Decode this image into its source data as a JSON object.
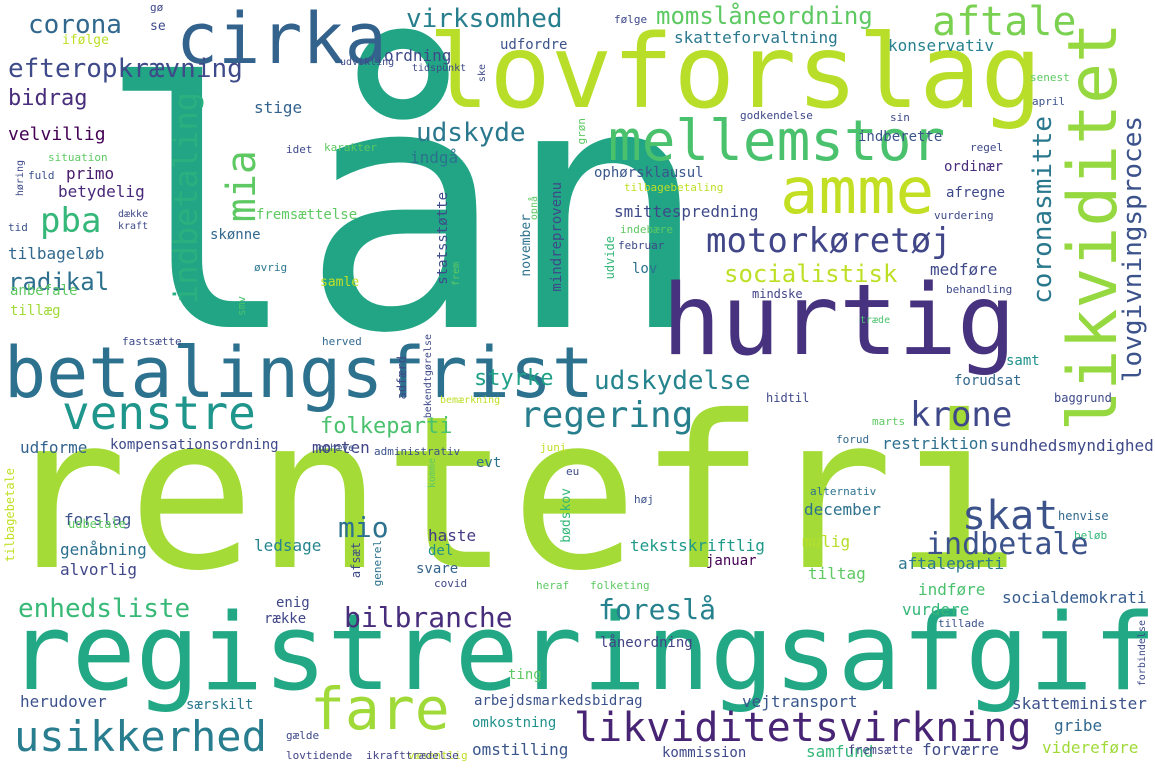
{
  "words": [
    {
      "text": "lån",
      "color": "#21a585"
    },
    {
      "text": "rentefri",
      "color": "#a5db36"
    },
    {
      "text": "registreringsafgift",
      "color": "#22a884"
    },
    {
      "text": "lovforslag",
      "color": "#b8de29"
    },
    {
      "text": "betalingsfrist",
      "color": "#2c718e"
    },
    {
      "text": "hurtig",
      "color": "#46327e"
    },
    {
      "text": "cirka",
      "color": "#33638d"
    },
    {
      "text": "mellemstor",
      "color": "#4ac16d"
    },
    {
      "text": "amme",
      "color": "#c2df23"
    },
    {
      "text": "likviditet",
      "color": "#95d840"
    },
    {
      "text": "venstre",
      "color": "#1f968b"
    },
    {
      "text": "fare",
      "color": "#a0da39"
    },
    {
      "text": "likviditetsvirkning",
      "color": "#482475"
    },
    {
      "text": "usikkerhed",
      "color": "#287d8e"
    },
    {
      "text": "regering",
      "color": "#277f8e"
    },
    {
      "text": "motorkøretøj",
      "color": "#404688"
    },
    {
      "text": "krone",
      "color": "#3f4889"
    },
    {
      "text": "skat",
      "color": "#3b528b"
    },
    {
      "text": "efteropkrævning",
      "color": "#3e4a89"
    },
    {
      "text": "aftale",
      "color": "#7ad151"
    },
    {
      "text": "virksomhed",
      "color": "#277f8e"
    },
    {
      "text": "momslåneordning",
      "color": "#5ec962"
    },
    {
      "text": "corona",
      "color": "#31688e"
    },
    {
      "text": "bidrag",
      "color": "#472d7b"
    },
    {
      "text": "udskyde",
      "color": "#2a788e"
    },
    {
      "text": "mia",
      "color": "#5ec962"
    },
    {
      "text": "pba",
      "color": "#35b779"
    },
    {
      "text": "indbetaling",
      "color": "#2ab07f"
    },
    {
      "text": "socialistisk",
      "color": "#bddf26"
    },
    {
      "text": "coronasmitte",
      "color": "#2a788e"
    },
    {
      "text": "lovgivningsproces",
      "color": "#3b528b"
    },
    {
      "text": "radikal",
      "color": "#2d708e"
    },
    {
      "text": "folkeparti",
      "color": "#4ac16d"
    },
    {
      "text": "styrke",
      "color": "#1fa088"
    },
    {
      "text": "udskydelse",
      "color": "#25848e"
    },
    {
      "text": "mio",
      "color": "#2c728e"
    },
    {
      "text": "indbetale",
      "color": "#3b528b"
    },
    {
      "text": "bilbranche",
      "color": "#472d7b"
    },
    {
      "text": "foreslå",
      "color": "#26828e"
    },
    {
      "text": "enhedsliste",
      "color": "#38b977"
    },
    {
      "text": "tilbageløb",
      "color": "#31688e"
    },
    {
      "text": "ordning",
      "color": "#3e4989"
    },
    {
      "text": "udfordre",
      "color": "#3b528b"
    },
    {
      "text": "skatteforvaltning",
      "color": "#2a788e"
    },
    {
      "text": "konservativ",
      "color": "#26828e"
    },
    {
      "text": "stige",
      "color": "#33638d"
    },
    {
      "text": "velvillig",
      "color": "#440154"
    },
    {
      "text": "primo",
      "color": "#481a6c"
    },
    {
      "text": "betydelig",
      "color": "#482878"
    },
    {
      "text": "udforme",
      "color": "#33638d"
    },
    {
      "text": "kompensationsordning",
      "color": "#3e4a89"
    },
    {
      "text": "morten",
      "color": "#414487"
    },
    {
      "text": "restriktion",
      "color": "#2d708e"
    },
    {
      "text": "sundhedsmyndighed",
      "color": "#3e4989"
    },
    {
      "text": "forslag",
      "color": "#3b528b"
    },
    {
      "text": "genåbning",
      "color": "#2c718e"
    },
    {
      "text": "alvorlig",
      "color": "#3f4788"
    },
    {
      "text": "ledsage",
      "color": "#25858e"
    },
    {
      "text": "haste",
      "color": "#443a83"
    },
    {
      "text": "del",
      "color": "#21918c"
    },
    {
      "text": "tekstskriftlig",
      "color": "#1f9a8a"
    },
    {
      "text": "mulig",
      "color": "#b5de2b"
    },
    {
      "text": "tiltag",
      "color": "#5ec962"
    },
    {
      "text": "december",
      "color": "#2c728e"
    },
    {
      "text": "januar",
      "color": "#440154"
    },
    {
      "text": "aftaleparti",
      "color": "#2a788e"
    },
    {
      "text": "indføre",
      "color": "#4ac16d"
    },
    {
      "text": "vurdere",
      "color": "#35b779"
    },
    {
      "text": "socialdemokrati",
      "color": "#365c8d"
    },
    {
      "text": "enig",
      "color": "#404688"
    },
    {
      "text": "række",
      "color": "#404688"
    },
    {
      "text": "låneordning",
      "color": "#414487"
    },
    {
      "text": "ting",
      "color": "#5ec962"
    },
    {
      "text": "herudover",
      "color": "#3b528b"
    },
    {
      "text": "særskilt",
      "color": "#2a788e"
    },
    {
      "text": "arbejdsmarkedsbidrag",
      "color": "#3b528b"
    },
    {
      "text": "vejtransport",
      "color": "#39568c"
    },
    {
      "text": "skatteminister",
      "color": "#3b528b"
    },
    {
      "text": "omkostning",
      "color": "#21918c"
    },
    {
      "text": "gribe",
      "color": "#31688e"
    },
    {
      "text": "omstilling",
      "color": "#39568c"
    },
    {
      "text": "kommission",
      "color": "#3e4989"
    },
    {
      "text": "samfund",
      "color": "#35b779"
    },
    {
      "text": "forværre",
      "color": "#3e4a89"
    },
    {
      "text": "videreføre",
      "color": "#a0da39"
    },
    {
      "text": "fremsætte",
      "color": "#414487"
    },
    {
      "text": "væsentlig",
      "color": "#bddf26"
    },
    {
      "text": "ikrafttrædelse",
      "color": "#414487"
    },
    {
      "text": "lovtidende",
      "color": "#414487"
    },
    {
      "text": "gælde",
      "color": "#3e4989"
    },
    {
      "text": "fremsættelse",
      "color": "#5ec962"
    },
    {
      "text": "skønne",
      "color": "#31688e"
    },
    {
      "text": "samle",
      "color": "#c2df23"
    },
    {
      "text": "lov",
      "color": "#2c728e"
    },
    {
      "text": "medføre",
      "color": "#3e4989"
    },
    {
      "text": "mindske",
      "color": "#414487"
    },
    {
      "text": "smittespredning",
      "color": "#3e4989"
    },
    {
      "text": "ophørsklausul",
      "color": "#39568c"
    },
    {
      "text": "indgå",
      "color": "#2c728e"
    },
    {
      "text": "indberette",
      "color": "#3b528b"
    },
    {
      "text": "ordinær",
      "color": "#472d7b"
    },
    {
      "text": "afregne",
      "color": "#3e4989"
    },
    {
      "text": "forudsat",
      "color": "#31688e"
    },
    {
      "text": "samt",
      "color": "#21918c"
    },
    {
      "text": "evt",
      "color": "#2c728e"
    },
    {
      "text": "svare",
      "color": "#33638d"
    },
    {
      "text": "covid",
      "color": "#3f4788"
    },
    {
      "text": "anbefale",
      "color": "#5ec962"
    },
    {
      "text": "tillæg",
      "color": "#a0da39"
    },
    {
      "text": "udbetale",
      "color": "#5ec962"
    },
    {
      "text": "ifølge",
      "color": "#bddf26"
    },
    {
      "text": "situation",
      "color": "#5ec962"
    },
    {
      "text": "fuld",
      "color": "#3b528b"
    },
    {
      "text": "dække",
      "color": "#3e4989"
    },
    {
      "text": "kraft",
      "color": "#3e4989"
    },
    {
      "text": "tid",
      "color": "#3b528b"
    },
    {
      "text": "øvrig",
      "color": "#2a788e"
    },
    {
      "text": "smv",
      "color": "#4ac16d"
    },
    {
      "text": "fastsætte",
      "color": "#3e4989"
    },
    {
      "text": "herved",
      "color": "#31688e"
    },
    {
      "text": "administrativ",
      "color": "#3b528b"
    },
    {
      "text": "ophæve",
      "color": "#3b528b"
    },
    {
      "text": "juni",
      "color": "#c2df23"
    },
    {
      "text": "eu",
      "color": "#3e4989"
    },
    {
      "text": "bemærkning",
      "color": "#bddf26"
    },
    {
      "text": "hidtil",
      "color": "#3e4989"
    },
    {
      "text": "baggrund",
      "color": "#3e4989"
    },
    {
      "text": "marts",
      "color": "#5ec962"
    },
    {
      "text": "forud",
      "color": "#31688e"
    },
    {
      "text": "alternativ",
      "color": "#2c728e"
    },
    {
      "text": "høj",
      "color": "#3b528b"
    },
    {
      "text": "henvise",
      "color": "#31688e"
    },
    {
      "text": "beløb",
      "color": "#35b779"
    },
    {
      "text": "heraf",
      "color": "#5ec962"
    },
    {
      "text": "folketing",
      "color": "#5ec962"
    },
    {
      "text": "generel",
      "color": "#2c728e"
    },
    {
      "text": "tillade",
      "color": "#3b528b"
    },
    {
      "text": "senest",
      "color": "#5ec962"
    },
    {
      "text": "april",
      "color": "#3b528b"
    },
    {
      "text": "sin",
      "color": "#3e4989"
    },
    {
      "text": "regel",
      "color": "#3e4989"
    },
    {
      "text": "vurdering",
      "color": "#3e4989"
    },
    {
      "text": "behandling",
      "color": "#3e4989"
    },
    {
      "text": "træde",
      "color": "#4ac16d"
    },
    {
      "text": "februar",
      "color": "#3e4989"
    },
    {
      "text": "udvide",
      "color": "#35b779"
    },
    {
      "text": "indebære",
      "color": "#5ec962"
    },
    {
      "text": "godkendelse",
      "color": "#3e4989"
    },
    {
      "text": "tilbagebetaling",
      "color": "#bddf26"
    },
    {
      "text": "karakter",
      "color": "#5ec962"
    },
    {
      "text": "idet",
      "color": "#3e4989"
    },
    {
      "text": "udvikling",
      "color": "#3e4989"
    },
    {
      "text": "tidspunkt",
      "color": "#3e4989"
    },
    {
      "text": "gø",
      "color": "#3e4989"
    },
    {
      "text": "se",
      "color": "#3e4989"
    },
    {
      "text": "følge",
      "color": "#3e4989"
    },
    {
      "text": "ske",
      "color": "#3e4989"
    },
    {
      "text": "høring",
      "color": "#3e4989"
    },
    {
      "text": "grøn",
      "color": "#5ec962"
    },
    {
      "text": "opnå",
      "color": "#5ec962"
    },
    {
      "text": "november",
      "color": "#2c728e"
    },
    {
      "text": "mindreprovenu",
      "color": "#3e4989"
    },
    {
      "text": "statsstøtte",
      "color": "#3e4989"
    },
    {
      "text": "frem",
      "color": "#5ec962"
    },
    {
      "text": "bekendtgørelse",
      "color": "#3e4989"
    },
    {
      "text": "adfærd",
      "color": "#3e4989"
    },
    {
      "text": "bødskov",
      "color": "#35b779"
    },
    {
      "text": "afsæt",
      "color": "#3e4989"
    },
    {
      "text": "komme",
      "color": "#5ec962"
    },
    {
      "text": "tilbagebetale",
      "color": "#c2df23"
    },
    {
      "text": "forbindelse",
      "color": "#3e4989"
    }
  ]
}
